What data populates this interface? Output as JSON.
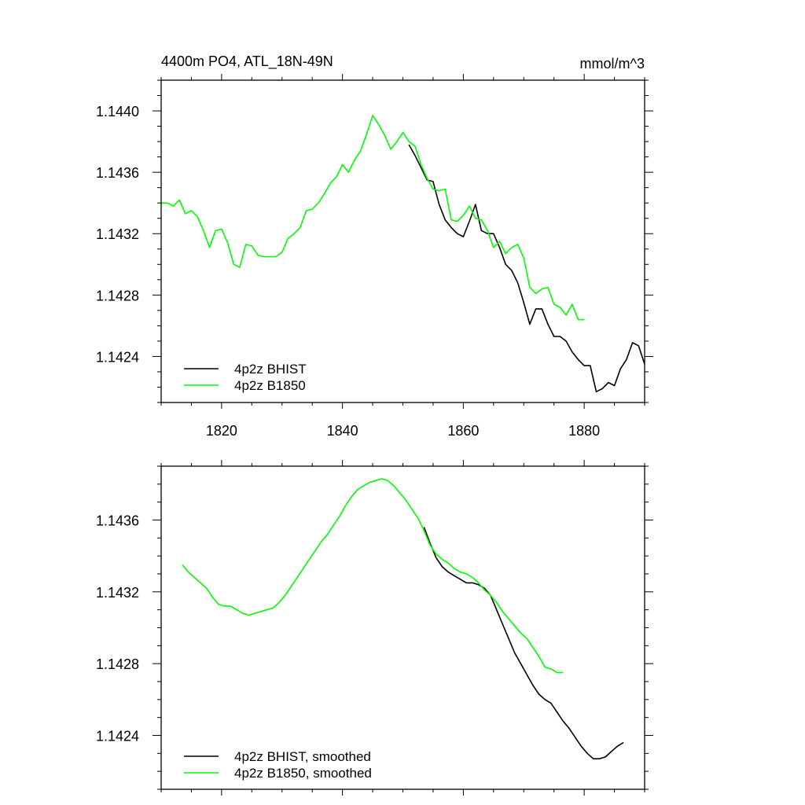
{
  "chart_data": [
    {
      "type": "line",
      "title": "4400m PO4, ATL_18N-49N",
      "units": "mmol/m^3",
      "xlim": [
        1810,
        1890
      ],
      "ylim": [
        1.1421,
        1.1442
      ],
      "xticks": [
        1820,
        1840,
        1860,
        1880
      ],
      "xtick_labels": [
        "1820",
        "1840",
        "1860",
        "1880"
      ],
      "yticks": [
        1.1424,
        1.1428,
        1.1432,
        1.1436,
        1.144
      ],
      "ytick_labels": [
        "1.1424",
        "1.1428",
        "1.1432",
        "1.1436",
        "1.1440"
      ],
      "legend_position": "bottom-left",
      "series": [
        {
          "name": "4p2z BHIST",
          "color": "#000000",
          "x": [
            1851,
            1852,
            1853,
            1854,
            1855,
            1856,
            1857,
            1858,
            1859,
            1860,
            1861,
            1862,
            1863,
            1864,
            1865,
            1866,
            1867,
            1868,
            1869,
            1870,
            1871,
            1872,
            1873,
            1874,
            1875,
            1876,
            1877,
            1878,
            1879,
            1880,
            1881,
            1882,
            1883,
            1884,
            1885,
            1886,
            1887,
            1888,
            1889,
            1890
          ],
          "y": [
            1.14378,
            1.14371,
            1.14363,
            1.14355,
            1.14354,
            1.14339,
            1.14329,
            1.14324,
            1.1432,
            1.14318,
            1.14328,
            1.14339,
            1.14322,
            1.1432,
            1.1432,
            1.14311,
            1.143,
            1.14296,
            1.14288,
            1.14275,
            1.14261,
            1.14271,
            1.14271,
            1.14261,
            1.14253,
            1.14253,
            1.1425,
            1.14243,
            1.14238,
            1.14234,
            1.14234,
            1.14217,
            1.14219,
            1.14223,
            1.14221,
            1.14232,
            1.14238,
            1.14249,
            1.14247,
            1.14235
          ]
        },
        {
          "name": "4p2z B1850",
          "color": "#00ff00",
          "x": [
            1810,
            1811,
            1812,
            1813,
            1814,
            1815,
            1816,
            1817,
            1818,
            1819,
            1820,
            1821,
            1822,
            1823,
            1824,
            1825,
            1826,
            1827,
            1828,
            1829,
            1830,
            1831,
            1832,
            1833,
            1834,
            1835,
            1836,
            1837,
            1838,
            1839,
            1840,
            1841,
            1842,
            1843,
            1844,
            1845,
            1846,
            1847,
            1848,
            1849,
            1850,
            1851,
            1852,
            1853,
            1854,
            1855,
            1856,
            1857,
            1858,
            1859,
            1860,
            1861,
            1862,
            1863,
            1864,
            1865,
            1866,
            1867,
            1868,
            1869,
            1870,
            1871,
            1872,
            1873,
            1874,
            1875,
            1876,
            1877,
            1878,
            1879,
            1880
          ],
          "y": [
            1.1434,
            1.1434,
            1.14338,
            1.14342,
            1.14333,
            1.14335,
            1.14331,
            1.14322,
            1.14311,
            1.14322,
            1.14323,
            1.14314,
            1.143,
            1.14298,
            1.14313,
            1.14312,
            1.14306,
            1.14305,
            1.14305,
            1.14305,
            1.14308,
            1.14317,
            1.1432,
            1.14324,
            1.14335,
            1.14336,
            1.1434,
            1.14346,
            1.14353,
            1.14357,
            1.14365,
            1.1436,
            1.14368,
            1.14374,
            1.14385,
            1.14397,
            1.14391,
            1.14384,
            1.14375,
            1.1438,
            1.14386,
            1.1438,
            1.14377,
            1.14365,
            1.14356,
            1.14349,
            1.14348,
            1.14349,
            1.14329,
            1.14328,
            1.14332,
            1.14338,
            1.1433,
            1.14329,
            1.14322,
            1.14311,
            1.14315,
            1.14307,
            1.14311,
            1.14313,
            1.14304,
            1.14285,
            1.14281,
            1.14284,
            1.14285,
            1.14274,
            1.14272,
            1.14267,
            1.14274,
            1.14264,
            1.14264
          ]
        }
      ]
    },
    {
      "type": "line",
      "title": "",
      "xlim": [
        1810,
        1890
      ],
      "ylim": [
        1.1421,
        1.1439
      ],
      "xticks": [
        1820,
        1840,
        1860,
        1880
      ],
      "yticks": [
        1.1424,
        1.1428,
        1.1432,
        1.1436
      ],
      "ytick_labels": [
        "1.1424",
        "1.1428",
        "1.1432",
        "1.1436"
      ],
      "legend_position": "bottom-left",
      "series": [
        {
          "name": "4p2z BHIST, smoothed",
          "color": "#000000",
          "x": [
            1853.5,
            1854.5,
            1855.5,
            1856.5,
            1857.5,
            1858.5,
            1859.5,
            1860.5,
            1861.5,
            1862.5,
            1863.5,
            1864.5,
            1865.5,
            1866.5,
            1867.5,
            1868.5,
            1869.5,
            1870.5,
            1871.5,
            1872.5,
            1873.5,
            1874.5,
            1875.5,
            1876.5,
            1877.5,
            1878.5,
            1879.5,
            1880.5,
            1881.5,
            1882.5,
            1883.5,
            1884.5,
            1885.5,
            1886.5
          ],
          "y": [
            1.14356,
            1.14347,
            1.14339,
            1.14334,
            1.14331,
            1.14329,
            1.14327,
            1.14325,
            1.14325,
            1.14324,
            1.14322,
            1.14318,
            1.1431,
            1.14302,
            1.14294,
            1.14286,
            1.1428,
            1.14274,
            1.14268,
            1.14263,
            1.1426,
            1.14258,
            1.14253,
            1.14248,
            1.14244,
            1.14239,
            1.14234,
            1.1423,
            1.14227,
            1.14227,
            1.14228,
            1.14231,
            1.14234,
            1.14236
          ]
        },
        {
          "name": "4p2z B1850, smoothed",
          "color": "#00ff00",
          "x": [
            1813.5,
            1814.5,
            1815.5,
            1816.5,
            1817.5,
            1818.5,
            1819.5,
            1820.5,
            1821.5,
            1822.5,
            1823.5,
            1824.5,
            1825.5,
            1826.5,
            1827.5,
            1828.5,
            1829.5,
            1830.5,
            1831.5,
            1832.5,
            1833.5,
            1834.5,
            1835.5,
            1836.5,
            1837.5,
            1838.5,
            1839.5,
            1840.5,
            1841.5,
            1842.5,
            1843.5,
            1844.5,
            1845.5,
            1846.5,
            1847.5,
            1848.5,
            1849.5,
            1850.5,
            1851.5,
            1852.5,
            1853.5,
            1854.5,
            1855.5,
            1856.5,
            1857.5,
            1858.5,
            1859.5,
            1860.5,
            1861.5,
            1862.5,
            1863.5,
            1864.5,
            1865.5,
            1866.5,
            1867.5,
            1868.5,
            1869.5,
            1870.5,
            1871.5,
            1872.5,
            1873.5,
            1874.5,
            1875.5,
            1876.5
          ],
          "y": [
            1.14335,
            1.14331,
            1.14328,
            1.14325,
            1.14322,
            1.14317,
            1.14313,
            1.14312,
            1.14312,
            1.1431,
            1.14308,
            1.14307,
            1.14308,
            1.14309,
            1.1431,
            1.14311,
            1.14314,
            1.14318,
            1.14323,
            1.14328,
            1.14333,
            1.14338,
            1.14343,
            1.14348,
            1.14352,
            1.14357,
            1.14362,
            1.14368,
            1.14373,
            1.14377,
            1.14379,
            1.14381,
            1.14382,
            1.14383,
            1.14382,
            1.14379,
            1.14375,
            1.14371,
            1.14366,
            1.14361,
            1.14354,
            1.14346,
            1.14341,
            1.14338,
            1.14336,
            1.14333,
            1.14331,
            1.1433,
            1.14328,
            1.14325,
            1.14321,
            1.14318,
            1.14314,
            1.14309,
            1.14305,
            1.14301,
            1.14297,
            1.14294,
            1.14289,
            1.14284,
            1.14278,
            1.14277,
            1.14275,
            1.14275
          ]
        }
      ]
    }
  ]
}
